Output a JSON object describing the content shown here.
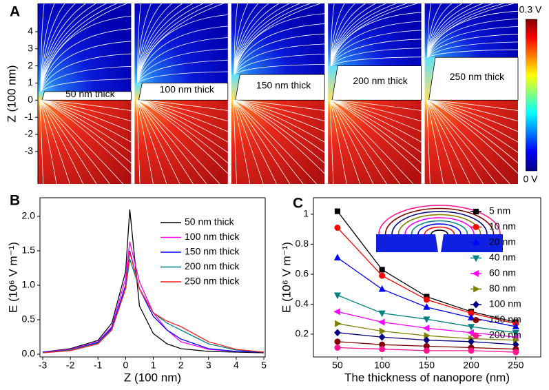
{
  "chart_data": [
    {
      "type": "field",
      "panel_label": "A",
      "y_label": "Z (100 nm)",
      "categories": [
        "50 nm thick",
        "100 nm thick",
        "150 nm thick",
        "200 nm thick",
        "250 nm thick"
      ],
      "values": [
        0.5,
        1,
        1.5,
        2,
        2.5
      ],
      "ylim": [
        -4.9,
        5.65
      ],
      "yticks": [
        -3,
        -2,
        -1,
        0,
        1,
        2,
        3,
        4
      ],
      "colorbar": {
        "lim": [
          0,
          0.3
        ],
        "ticks": [
          {
            "value": 0,
            "label": "0 V"
          },
          {
            "value": 0.3,
            "label": "0.3 V"
          }
        ]
      }
    },
    {
      "type": "line",
      "panel_label": "B",
      "x_label": "Z (100 nm)",
      "y_label": "E (10⁶ V m⁻¹)",
      "xlim": [
        -3.1,
        5.05
      ],
      "xticks": [
        -3,
        -2,
        -1,
        0,
        1,
        2,
        3,
        4,
        5
      ],
      "ylim": [
        -0.04,
        2.27
      ],
      "yticks": [
        {
          "value": 0,
          "label": "0.0"
        },
        0.5,
        {
          "value": 1,
          "label": "1.0"
        },
        1.5,
        {
          "value": 2,
          "label": "2.0"
        }
      ],
      "x": [
        -3,
        -2,
        -1,
        -0.5,
        0,
        0.15,
        0.5,
        1,
        1.5,
        2,
        3,
        4,
        5
      ],
      "series": [
        {
          "name": "50 nm thick",
          "color": "#000000",
          "values": [
            0.03,
            0.08,
            0.2,
            0.45,
            1.2,
            2.1,
            0.7,
            0.3,
            0.15,
            0.08,
            0.04,
            0.03,
            0.02
          ]
        },
        {
          "name": "100 nm thick",
          "color": "#ff00ff",
          "values": [
            0.03,
            0.07,
            0.18,
            0.4,
            1.1,
            1.63,
            1.05,
            0.6,
            0.35,
            0.18,
            0.07,
            0.04,
            0.03
          ]
        },
        {
          "name": "150 nm thick",
          "color": "#0000ff",
          "values": [
            0.03,
            0.06,
            0.17,
            0.38,
            1.0,
            1.5,
            0.95,
            0.55,
            0.35,
            0.22,
            0.08,
            0.04,
            0.03
          ]
        },
        {
          "name": "200 nm thick",
          "color": "#008080",
          "values": [
            0.02,
            0.06,
            0.16,
            0.36,
            0.95,
            1.38,
            0.95,
            0.6,
            0.45,
            0.35,
            0.15,
            0.06,
            0.03
          ]
        },
        {
          "name": "250 nm thick",
          "color": "#ff2020",
          "values": [
            0.02,
            0.05,
            0.15,
            0.35,
            0.95,
            1.48,
            0.95,
            0.6,
            0.48,
            0.4,
            0.18,
            0.07,
            0.03
          ]
        }
      ]
    },
    {
      "type": "line",
      "panel_label": "C",
      "x_label": "The thickness of nanopore (nm)",
      "y_label": "E (10⁶ V m⁻¹)",
      "xlim": [
        23,
        278
      ],
      "xticks": [
        50,
        100,
        150,
        200,
        250
      ],
      "ylim": [
        0.048,
        1.11
      ],
      "yticks": [
        0.2,
        0.4,
        0.6,
        0.8,
        1
      ],
      "x": [
        50,
        100,
        150,
        200,
        250
      ],
      "series": [
        {
          "name": "5 nm",
          "color": "#000000",
          "marker": "square",
          "values": [
            1.02,
            0.63,
            0.45,
            0.35,
            0.28
          ]
        },
        {
          "name": "10 nm",
          "color": "#ff0000",
          "marker": "circle",
          "values": [
            0.91,
            0.59,
            0.43,
            0.34,
            0.27
          ]
        },
        {
          "name": "20 nm",
          "color": "#0000ff",
          "marker": "triangle-up",
          "values": [
            0.71,
            0.5,
            0.38,
            0.31,
            0.25
          ]
        },
        {
          "name": "40 nm",
          "color": "#008080",
          "marker": "triangle-down",
          "values": [
            0.46,
            0.34,
            0.3,
            0.25,
            0.21
          ]
        },
        {
          "name": "60 nm",
          "color": "#ff00ff",
          "marker": "triangle-left",
          "values": [
            0.35,
            0.28,
            0.24,
            0.21,
            0.18
          ]
        },
        {
          "name": "80 nm",
          "color": "#808000",
          "marker": "triangle-right",
          "values": [
            0.27,
            0.22,
            0.19,
            0.17,
            0.16
          ]
        },
        {
          "name": "100 nm",
          "color": "#000080",
          "marker": "diamond",
          "values": [
            0.21,
            0.18,
            0.16,
            0.15,
            0.13
          ]
        },
        {
          "name": "150 nm",
          "color": "#800000",
          "marker": "circle",
          "values": [
            0.15,
            0.13,
            0.12,
            0.11,
            0.1
          ]
        },
        {
          "name": "200 nm",
          "color": "#ff1493",
          "marker": "circle",
          "values": [
            0.11,
            0.1,
            0.09,
            0.09,
            0.08
          ]
        }
      ]
    }
  ]
}
